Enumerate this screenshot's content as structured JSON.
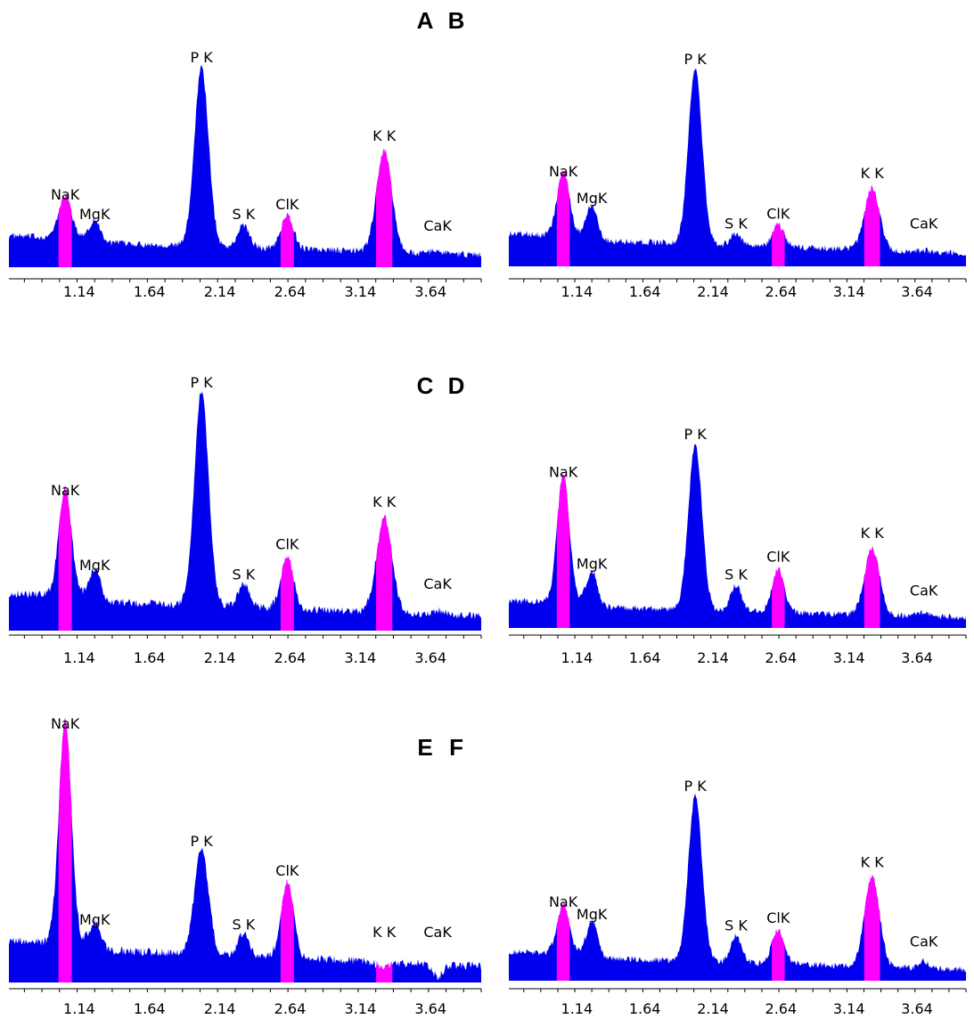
{
  "colors": {
    "spectrum": "#0000ee",
    "highlight": "#ff00ff",
    "axis": "#000000",
    "background": "#ffffff"
  },
  "chart_data": [
    {
      "panel": "A",
      "type": "area",
      "x_ticks": [
        "1.14",
        "1.64",
        "2.14",
        "2.64",
        "3.14",
        "3.64"
      ],
      "xlim": [
        0.64,
        4.0
      ],
      "peaks": [
        {
          "label": "NaK",
          "energy": 1.04,
          "height": 0.3,
          "highlighted": true
        },
        {
          "label": "MgK",
          "energy": 1.25,
          "height": 0.2,
          "highlighted": false
        },
        {
          "label": "P K",
          "energy": 2.01,
          "height": 1.0,
          "highlighted": false
        },
        {
          "label": "S K",
          "energy": 2.31,
          "height": 0.2,
          "highlighted": false
        },
        {
          "label": "ClK",
          "energy": 2.62,
          "height": 0.25,
          "highlighted": true
        },
        {
          "label": "K K",
          "energy": 3.31,
          "height": 0.6,
          "highlighted": true
        },
        {
          "label": "CaK",
          "energy": 3.69,
          "height": 0.1,
          "highlighted": false
        }
      ],
      "background_level": 0.14
    },
    {
      "panel": "B",
      "type": "area",
      "x_ticks": [
        "1.14",
        "1.64",
        "2.14",
        "2.64",
        "3.14",
        "3.64"
      ],
      "xlim": [
        0.64,
        4.0
      ],
      "peaks": [
        {
          "label": "NaK",
          "energy": 1.04,
          "height": 0.42,
          "highlighted": true
        },
        {
          "label": "MgK",
          "energy": 1.25,
          "height": 0.28,
          "highlighted": false
        },
        {
          "label": "P K",
          "energy": 2.01,
          "height": 1.0,
          "highlighted": false
        },
        {
          "label": "S K",
          "energy": 2.31,
          "height": 0.15,
          "highlighted": false
        },
        {
          "label": "ClK",
          "energy": 2.62,
          "height": 0.2,
          "highlighted": true
        },
        {
          "label": "K K",
          "energy": 3.31,
          "height": 0.41,
          "highlighted": true
        },
        {
          "label": "CaK",
          "energy": 3.69,
          "height": 0.1,
          "highlighted": false
        }
      ],
      "background_level": 0.15
    },
    {
      "panel": "C",
      "type": "area",
      "x_ticks": [
        "1.14",
        "1.64",
        "2.14",
        "2.64",
        "3.14",
        "3.64"
      ],
      "xlim": [
        0.64,
        4.0
      ],
      "peaks": [
        {
          "label": "NaK",
          "energy": 1.04,
          "height": 0.54,
          "highlighted": true
        },
        {
          "label": "MgK",
          "energy": 1.25,
          "height": 0.22,
          "highlighted": false
        },
        {
          "label": "P K",
          "energy": 2.01,
          "height": 1.0,
          "highlighted": false
        },
        {
          "label": "S K",
          "energy": 2.31,
          "height": 0.18,
          "highlighted": false
        },
        {
          "label": "ClK",
          "energy": 2.62,
          "height": 0.31,
          "highlighted": true
        },
        {
          "label": "K K",
          "energy": 3.31,
          "height": 0.49,
          "highlighted": true
        },
        {
          "label": "CaK",
          "energy": 3.69,
          "height": 0.1,
          "highlighted": false
        }
      ],
      "background_level": 0.14
    },
    {
      "panel": "D",
      "type": "area",
      "x_ticks": [
        "1.14",
        "1.64",
        "2.14",
        "2.64",
        "3.14",
        "3.64"
      ],
      "xlim": [
        0.64,
        4.0
      ],
      "peaks": [
        {
          "label": "NaK",
          "energy": 1.04,
          "height": 0.79,
          "highlighted": true
        },
        {
          "label": "MgK",
          "energy": 1.25,
          "height": 0.28,
          "highlighted": false
        },
        {
          "label": "P K",
          "energy": 2.01,
          "height": 1.0,
          "highlighted": false
        },
        {
          "label": "S K",
          "energy": 2.31,
          "height": 0.22,
          "highlighted": false
        },
        {
          "label": "ClK",
          "energy": 2.62,
          "height": 0.32,
          "highlighted": true
        },
        {
          "label": "K K",
          "energy": 3.31,
          "height": 0.45,
          "highlighted": true
        },
        {
          "label": "CaK",
          "energy": 3.69,
          "height": 0.1,
          "highlighted": false
        }
      ],
      "background_level": 0.13
    },
    {
      "panel": "E",
      "type": "area",
      "x_ticks": [
        "1.14",
        "1.64",
        "2.14",
        "2.64",
        "3.14",
        "3.64"
      ],
      "xlim": [
        0.64,
        4.0
      ],
      "peaks": [
        {
          "label": "NaK",
          "energy": 1.04,
          "height": 1.0,
          "highlighted": true
        },
        {
          "label": "MgK",
          "energy": 1.25,
          "height": 0.2,
          "highlighted": false
        },
        {
          "label": "P K",
          "energy": 2.01,
          "height": 0.52,
          "highlighted": false
        },
        {
          "label": "S K",
          "energy": 2.31,
          "height": 0.18,
          "highlighted": false
        },
        {
          "label": "ClK",
          "energy": 2.62,
          "height": 0.4,
          "highlighted": true
        },
        {
          "label": "K K",
          "energy": 3.31,
          "height": 0.07,
          "highlighted": true
        },
        {
          "label": "CaK",
          "energy": 3.69,
          "height": 0.04,
          "highlighted": false
        }
      ],
      "background_level": 0.15
    },
    {
      "panel": "F",
      "type": "area",
      "x_ticks": [
        "1.14",
        "1.64",
        "2.14",
        "2.64",
        "3.14",
        "3.64"
      ],
      "xlim": [
        0.64,
        4.0
      ],
      "peaks": [
        {
          "label": "NaK",
          "energy": 1.04,
          "height": 0.36,
          "highlighted": true
        },
        {
          "label": "MgK",
          "energy": 1.25,
          "height": 0.29,
          "highlighted": false
        },
        {
          "label": "P K",
          "energy": 2.01,
          "height": 1.0,
          "highlighted": false
        },
        {
          "label": "S K",
          "energy": 2.31,
          "height": 0.23,
          "highlighted": false
        },
        {
          "label": "ClK",
          "energy": 2.62,
          "height": 0.27,
          "highlighted": true
        },
        {
          "label": "K K",
          "energy": 3.31,
          "height": 0.58,
          "highlighted": true
        },
        {
          "label": "CaK",
          "energy": 3.69,
          "height": 0.12,
          "highlighted": false
        }
      ],
      "background_level": 0.14
    }
  ]
}
